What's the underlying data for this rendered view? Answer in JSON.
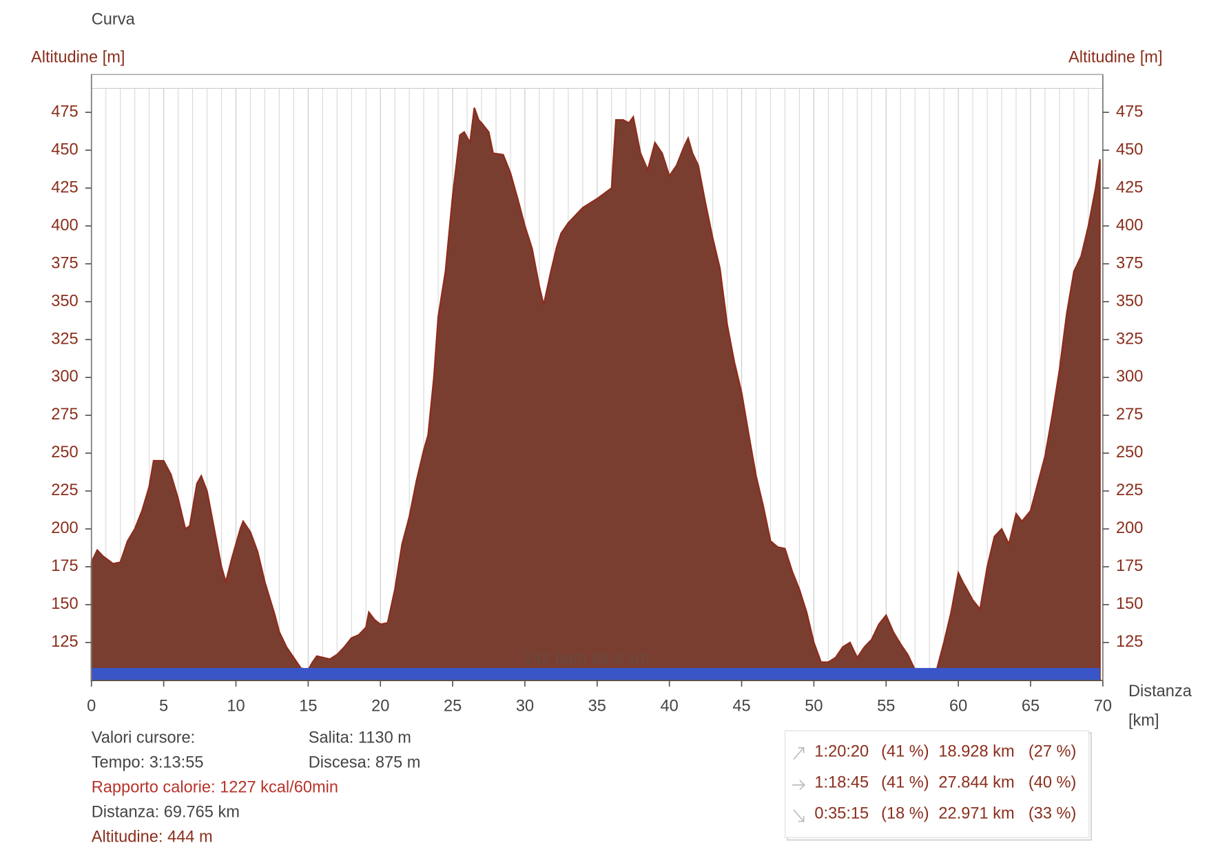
{
  "chart_data": {
    "type": "area",
    "title": "Curva",
    "y_label": "Altitudine [m]",
    "y2_label": "Altitudine [m]",
    "x_label": "Distanza",
    "x_unit": "[km]",
    "color": "#7a3e30",
    "line_color": "#8e2c1c",
    "grid": true,
    "xlim": [
      0,
      70
    ],
    "xticks": [
      0,
      5,
      10,
      15,
      20,
      25,
      30,
      35,
      40,
      45,
      50,
      55,
      60,
      65,
      70
    ],
    "ylim": [
      100,
      500
    ],
    "yticks": [
      125,
      150,
      175,
      200,
      225,
      250,
      275,
      300,
      325,
      350,
      375,
      400,
      425,
      450,
      475
    ],
    "cursor_label": "142 bpm 69.8 km",
    "band_color": "#3a55c8",
    "x": [
      0,
      0.4,
      0.8,
      1.5,
      2,
      2.5,
      3,
      3.5,
      4,
      4.3,
      5,
      5.5,
      6,
      6.5,
      6.8,
      7.3,
      7.6,
      8,
      8.5,
      9,
      9.3,
      9.7,
      10.3,
      10.5,
      11,
      11.5,
      12,
      12.7,
      13,
      13.5,
      14,
      14.5,
      15,
      15.3,
      15.6,
      16.5,
      17,
      17.5,
      18,
      18.5,
      19,
      19.2,
      19.6,
      20,
      20.5,
      21,
      21.5,
      22,
      22.5,
      23,
      23.3,
      23.7,
      24,
      24.5,
      25,
      25.5,
      25.8,
      26.2,
      26.5,
      26.8,
      27,
      27.5,
      27.8,
      28.5,
      29,
      29.5,
      30,
      30.5,
      31,
      31.3,
      31.8,
      32.2,
      32.5,
      33,
      34,
      35,
      36,
      36.3,
      36.8,
      37.2,
      37.5,
      38,
      38.5,
      39,
      39.5,
      40,
      40.5,
      41,
      41.3,
      41.6,
      42,
      42.5,
      43,
      43.5,
      44,
      44.5,
      45,
      45.5,
      46,
      46.5,
      47,
      47.5,
      48,
      48.5,
      49,
      49.5,
      50,
      50.5,
      51,
      51.5,
      52,
      52.5,
      53,
      53.5,
      54,
      54.5,
      55,
      55.5,
      56,
      56.5,
      57,
      58.5,
      59,
      59.5,
      60,
      60.3,
      60.6,
      61,
      61.5,
      62,
      62.5,
      63,
      63.5,
      64,
      64.4,
      65,
      65.5,
      66,
      66.5,
      67,
      67.5,
      68,
      68.5,
      69,
      69.5,
      69.8
    ],
    "values": [
      178,
      186,
      182,
      177,
      178,
      192,
      200,
      212,
      228,
      245,
      245,
      236,
      220,
      200,
      202,
      230,
      235,
      225,
      200,
      175,
      165,
      180,
      200,
      205,
      198,
      185,
      165,
      143,
      132,
      122,
      115,
      108,
      107,
      112,
      116,
      114,
      117,
      122,
      128,
      130,
      135,
      145,
      140,
      137,
      138,
      160,
      190,
      208,
      232,
      252,
      262,
      300,
      340,
      370,
      420,
      460,
      462,
      455,
      478,
      470,
      468,
      462,
      448,
      447,
      435,
      418,
      400,
      385,
      360,
      348,
      370,
      386,
      395,
      402,
      412,
      418,
      425,
      470,
      470,
      468,
      472,
      448,
      437,
      455,
      448,
      433,
      440,
      452,
      458,
      448,
      440,
      415,
      392,
      372,
      335,
      310,
      290,
      262,
      235,
      215,
      192,
      188,
      187,
      172,
      160,
      145,
      125,
      112,
      112,
      115,
      122,
      125,
      115,
      122,
      127,
      137,
      143,
      132,
      124,
      117,
      107,
      107,
      125,
      145,
      171,
      165,
      160,
      153,
      147,
      175,
      195,
      200,
      190,
      210,
      205,
      212,
      230,
      248,
      275,
      305,
      342,
      370,
      380,
      400,
      425,
      444
    ]
  },
  "info": {
    "cursor_title": "Valori cursore:",
    "tempo": "Tempo: 3:13:55",
    "calorie": "Rapporto calorie: 1227 kcal/60min",
    "distanza": "Distanza: 69.765 km",
    "altitudine": "Altitudine: 444 m",
    "salita": "Salita: 1130 m",
    "discesa": "Discesa: 875 m"
  },
  "summary": {
    "rows": [
      [
        "1:20:20",
        "(41 %)",
        "18.928 km",
        "(27 %)"
      ],
      [
        "1:18:45",
        "(41 %)",
        "27.844 km",
        "(40 %)"
      ],
      [
        "0:35:15",
        "(18 %)",
        "22.971 km",
        "(33 %)"
      ]
    ]
  }
}
